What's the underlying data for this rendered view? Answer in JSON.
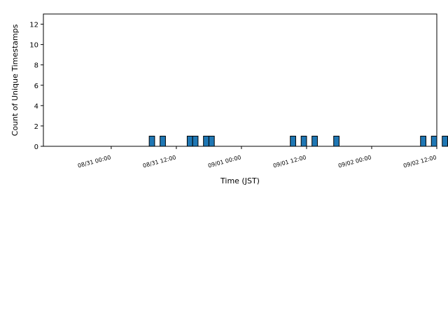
{
  "chart_data": {
    "type": "bar",
    "title": "",
    "xlabel": "Time (JST)",
    "ylabel": "Count of Unique Timestamps",
    "x_unit": "hours since 08/31 00:00 (JST)",
    "xlim": [
      -12.5,
      60
    ],
    "ylim": [
      0,
      13
    ],
    "grid": false,
    "bar_width_hours": 1,
    "yticks": [
      0,
      2,
      4,
      6,
      8,
      10,
      12
    ],
    "xticks": [
      {
        "hour": 0,
        "label": "08/31 00:00"
      },
      {
        "hour": 12,
        "label": "08/31 12:00"
      },
      {
        "hour": 24,
        "label": "09/01 00:00"
      },
      {
        "hour": 36,
        "label": "09/01 12:00"
      },
      {
        "hour": 48,
        "label": "09/02 00:00"
      },
      {
        "hour": 60,
        "label": "09/02 12:00"
      }
    ],
    "bar_color": "#1f77b4",
    "bar_edge_color": "#000000",
    "bars": [
      {
        "x": 7.5,
        "value": 1
      },
      {
        "x": 9.5,
        "value": 1
      },
      {
        "x": 14.5,
        "value": 1
      },
      {
        "x": 15.5,
        "value": 1
      },
      {
        "x": 17.5,
        "value": 1
      },
      {
        "x": 18.5,
        "value": 1
      },
      {
        "x": 33.5,
        "value": 1
      },
      {
        "x": 35.5,
        "value": 1
      },
      {
        "x": 37.5,
        "value": 1
      },
      {
        "x": 41.5,
        "value": 1
      },
      {
        "x": 57.5,
        "value": 1
      },
      {
        "x": 59.5,
        "value": 1
      },
      {
        "x": 61.5,
        "value": 1
      }
    ]
  }
}
